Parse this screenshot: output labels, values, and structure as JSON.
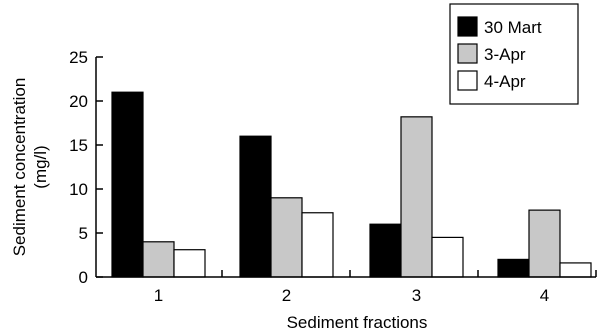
{
  "chart_data": {
    "type": "bar",
    "title": "",
    "xlabel": "Sediment fractions",
    "ylabel_lines": [
      "Sediment concentration",
      "(mg/l)"
    ],
    "categories": [
      "1",
      "2",
      "3",
      "4"
    ],
    "ylim": [
      0,
      25
    ],
    "yticks": [
      "0",
      "5",
      "10",
      "15",
      "20",
      "25"
    ],
    "grid": false,
    "legend_position": "top-right",
    "series": [
      {
        "name": "30 Mart",
        "color": "#000000",
        "values": [
          21.0,
          16.0,
          6.0,
          2.0
        ]
      },
      {
        "name": "3-Apr",
        "color": "#c8c8c8",
        "values": [
          4.0,
          9.0,
          18.2,
          7.6
        ]
      },
      {
        "name": "4-Apr",
        "color": "#ffffff",
        "values": [
          3.1,
          7.3,
          4.5,
          1.6
        ]
      }
    ]
  }
}
